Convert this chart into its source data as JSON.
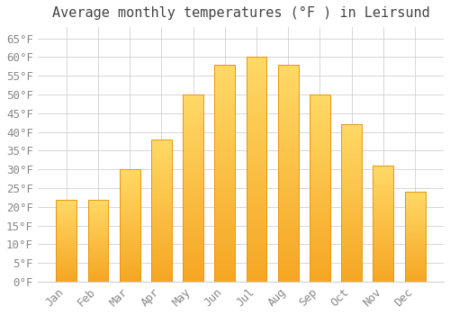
{
  "title": "Average monthly temperatures (°F ) in Leirsund",
  "months": [
    "Jan",
    "Feb",
    "Mar",
    "Apr",
    "May",
    "Jun",
    "Jul",
    "Aug",
    "Sep",
    "Oct",
    "Nov",
    "Dec"
  ],
  "values": [
    22,
    22,
    30,
    38,
    50,
    58,
    60,
    58,
    50,
    42,
    31,
    24
  ],
  "bar_color_bottom": "#F5A623",
  "bar_color_top": "#FFD966",
  "bar_edge_color": "#E8960A",
  "background_color": "#FFFFFF",
  "grid_color": "#D0D0D0",
  "ytick_step": 5,
  "ymin": 0,
  "ymax": 68,
  "title_fontsize": 11,
  "tick_fontsize": 9,
  "font_family": "monospace",
  "tick_color": "#888888",
  "title_color": "#444444"
}
